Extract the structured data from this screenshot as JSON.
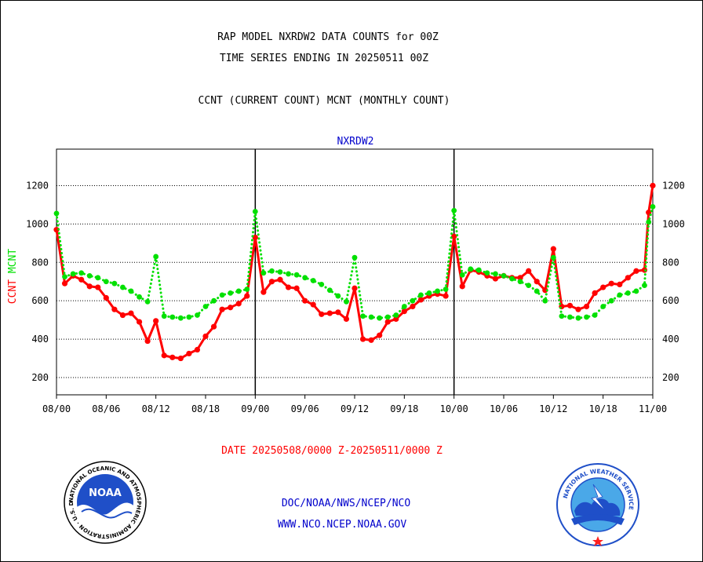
{
  "titles": {
    "line1": "RAP MODEL NXRDW2 DATA COUNTS for 00Z",
    "line2": "TIME SERIES ENDING IN 20250511 00Z",
    "line3": "CCNT (CURRENT COUNT) MCNT (MONTHLY COUNT)"
  },
  "footer": {
    "date_range": "DATE 20250508/0000 Z-20250511/0000 Z",
    "org": "DOC/NOAA/NWS/NCEP/NCO",
    "url": "WWW.NCO.NCEP.NOAA.GOV"
  },
  "logos": {
    "noaa_label": "NOAA",
    "noaa_ring_text": "NATIONAL OCEANIC AND ATMOSPHERIC ADMINISTRATION · U.S. DEPARTMENT OF COMMERCE",
    "nws_ring_text": "NATIONAL WEATHER SERVICE"
  },
  "colors": {
    "ccnt": "#ff0000",
    "mcnt": "#00e000",
    "frame": "#000000",
    "blue_text": "#0000cc"
  },
  "chart_data": {
    "type": "line",
    "title": "NXRDW2",
    "ylabel_parts": [
      {
        "text": "CCNT",
        "color": "#ff0000"
      },
      {
        "text": "MCNT",
        "color": "#00e000"
      }
    ],
    "x_tick_labels": [
      "08/00",
      "08/06",
      "08/12",
      "08/18",
      "09/00",
      "09/06",
      "09/12",
      "09/18",
      "10/00",
      "10/06",
      "10/12",
      "10/18",
      "11/00"
    ],
    "x_tick_positions": [
      0,
      6,
      12,
      18,
      24,
      30,
      36,
      42,
      48,
      54,
      60,
      66,
      72
    ],
    "day_separators": [
      24,
      48
    ],
    "xlim": [
      0,
      72
    ],
    "ylim": [
      110,
      1390
    ],
    "y_ticks": [
      200,
      400,
      600,
      800,
      1000,
      1200
    ],
    "grid": "horizontal dotted",
    "series": [
      {
        "name": "CCNT",
        "color": "#ff0000",
        "style": "solid",
        "x": [
          0,
          1,
          2,
          3,
          4,
          5,
          6,
          7,
          8,
          9,
          10,
          11,
          12,
          13,
          14,
          15,
          16,
          17,
          18,
          19,
          20,
          21,
          22,
          23,
          24,
          25,
          26,
          27,
          28,
          29,
          30,
          31,
          32,
          33,
          34,
          35,
          36,
          37,
          38,
          39,
          40,
          41,
          42,
          43,
          44,
          45,
          46,
          47,
          48,
          49,
          50,
          51,
          52,
          53,
          54,
          55,
          56,
          57,
          58,
          59,
          60,
          61,
          62,
          63,
          64,
          65,
          66,
          67,
          68,
          69,
          70,
          71,
          71.5,
          72
        ],
        "values": [
          970,
          690,
          730,
          710,
          675,
          670,
          615,
          555,
          525,
          535,
          490,
          390,
          495,
          315,
          305,
          300,
          325,
          345,
          415,
          465,
          555,
          565,
          585,
          625,
          930,
          645,
          700,
          710,
          670,
          665,
          600,
          580,
          530,
          535,
          540,
          505,
          665,
          400,
          395,
          420,
          490,
          505,
          545,
          570,
          605,
          625,
          635,
          625,
          935,
          675,
          760,
          750,
          730,
          715,
          730,
          720,
          720,
          755,
          700,
          655,
          870,
          570,
          575,
          555,
          570,
          640,
          670,
          690,
          685,
          720,
          755,
          760,
          1060,
          1200
        ]
      },
      {
        "name": "MCNT",
        "color": "#00e000",
        "style": "dotted",
        "x": [
          0,
          1,
          2,
          3,
          4,
          5,
          6,
          7,
          8,
          9,
          10,
          11,
          12,
          13,
          14,
          15,
          16,
          17,
          18,
          19,
          20,
          21,
          22,
          23,
          24,
          25,
          26,
          27,
          28,
          29,
          30,
          31,
          32,
          33,
          34,
          35,
          36,
          37,
          38,
          39,
          40,
          41,
          42,
          43,
          44,
          45,
          46,
          47,
          48,
          49,
          50,
          51,
          52,
          53,
          54,
          55,
          56,
          57,
          58,
          59,
          60,
          61,
          62,
          63,
          64,
          65,
          66,
          67,
          68,
          69,
          70,
          71,
          71.5,
          72
        ],
        "values": [
          1055,
          725,
          740,
          745,
          730,
          720,
          700,
          690,
          670,
          650,
          620,
          595,
          830,
          520,
          515,
          510,
          515,
          525,
          570,
          600,
          630,
          640,
          650,
          660,
          1065,
          745,
          755,
          750,
          740,
          735,
          720,
          705,
          685,
          655,
          625,
          595,
          825,
          520,
          515,
          510,
          515,
          525,
          570,
          600,
          630,
          640,
          650,
          660,
          1070,
          735,
          765,
          760,
          745,
          740,
          730,
          715,
          700,
          680,
          650,
          600,
          825,
          520,
          515,
          510,
          515,
          525,
          570,
          600,
          630,
          640,
          650,
          680,
          1010,
          1090
        ]
      }
    ]
  }
}
